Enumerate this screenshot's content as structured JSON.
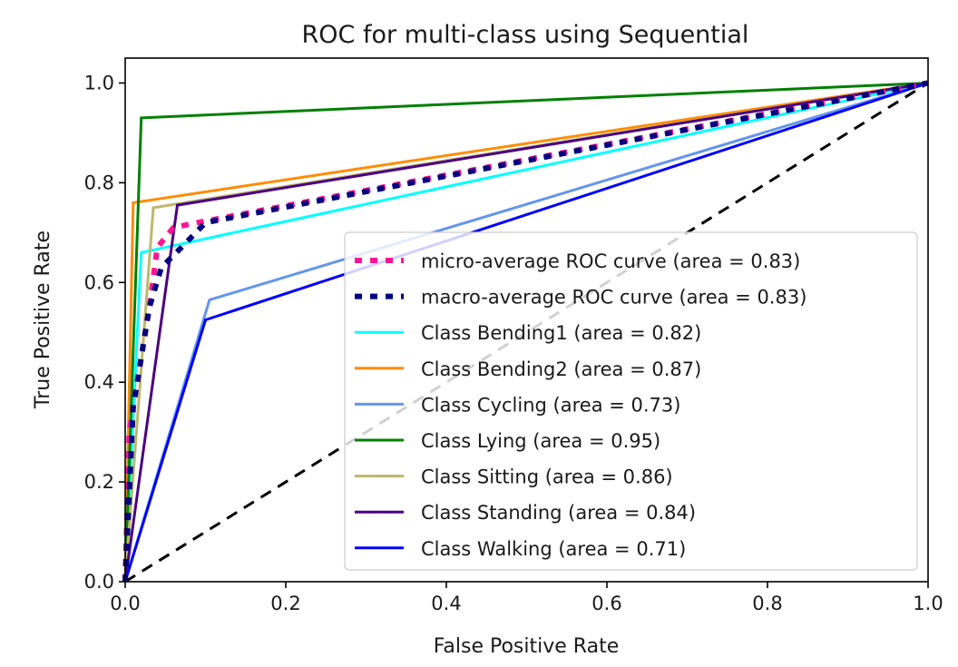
{
  "chart_data": {
    "type": "line",
    "title": "ROC for multi-class using Sequential",
    "xlabel": "False Positive Rate",
    "ylabel": "True Positive Rate",
    "xlim": [
      0.0,
      1.0
    ],
    "ylim": [
      0.0,
      1.05
    ],
    "xticks": [
      "0.0",
      "0.2",
      "0.4",
      "0.6",
      "0.8",
      "1.0"
    ],
    "yticks": [
      "0.0",
      "0.2",
      "0.4",
      "0.6",
      "0.8",
      "1.0"
    ],
    "xtick_values": [
      0.0,
      0.2,
      0.4,
      0.6,
      0.8,
      1.0
    ],
    "ytick_values": [
      0.0,
      0.2,
      0.4,
      0.6,
      0.8,
      1.0
    ],
    "grid": false,
    "legend_position": "lower-right",
    "diagonal": {
      "x": [
        0,
        1
      ],
      "y": [
        0,
        1
      ],
      "color": "#000000",
      "style": "dashed"
    },
    "series": [
      {
        "name": "micro-average ROC curve (area = 0.83)",
        "color": "#ff1493",
        "style": "dotted",
        "x": [
          0.0,
          0.005,
          0.03,
          0.04,
          0.06,
          0.09,
          1.0
        ],
        "y": [
          0.0,
          0.3,
          0.55,
          0.67,
          0.71,
          0.72,
          1.0
        ]
      },
      {
        "name": "macro-average ROC curve (area = 0.83)",
        "color": "#000080",
        "style": "dotted",
        "x": [
          0.0,
          0.01,
          0.03,
          0.045,
          0.07,
          0.1,
          1.0
        ],
        "y": [
          0.0,
          0.35,
          0.55,
          0.63,
          0.67,
          0.72,
          1.0
        ]
      },
      {
        "name": "Class Bending1 (area = 0.82)",
        "color": "#00ffff",
        "style": "solid",
        "x": [
          0.0,
          0.02,
          1.0
        ],
        "y": [
          0.0,
          0.66,
          1.0
        ]
      },
      {
        "name": "Class Bending2 (area = 0.87)",
        "color": "#ff8c00",
        "style": "solid",
        "x": [
          0.0,
          0.01,
          1.0
        ],
        "y": [
          0.0,
          0.76,
          1.0
        ]
      },
      {
        "name": "Class Cycling (area = 0.73)",
        "color": "#6495ed",
        "style": "solid",
        "x": [
          0.0,
          0.105,
          1.0
        ],
        "y": [
          0.0,
          0.565,
          1.0
        ]
      },
      {
        "name": "Class Lying (area = 0.95)",
        "color": "#008000",
        "style": "solid",
        "x": [
          0.0,
          0.02,
          1.0
        ],
        "y": [
          0.0,
          0.93,
          1.0
        ]
      },
      {
        "name": "Class Sitting (area = 0.86)",
        "color": "#bdb76b",
        "style": "solid",
        "x": [
          0.0,
          0.035,
          1.0
        ],
        "y": [
          0.0,
          0.75,
          1.0
        ]
      },
      {
        "name": "Class Standing (area = 0.84)",
        "color": "#4b0082",
        "style": "solid",
        "x": [
          0.0,
          0.065,
          1.0
        ],
        "y": [
          0.0,
          0.755,
          1.0
        ]
      },
      {
        "name": "Class Walking (area = 0.71)",
        "color": "#0000ff",
        "style": "solid",
        "x": [
          0.0,
          0.1,
          1.0
        ],
        "y": [
          0.0,
          0.525,
          1.0
        ]
      }
    ]
  }
}
